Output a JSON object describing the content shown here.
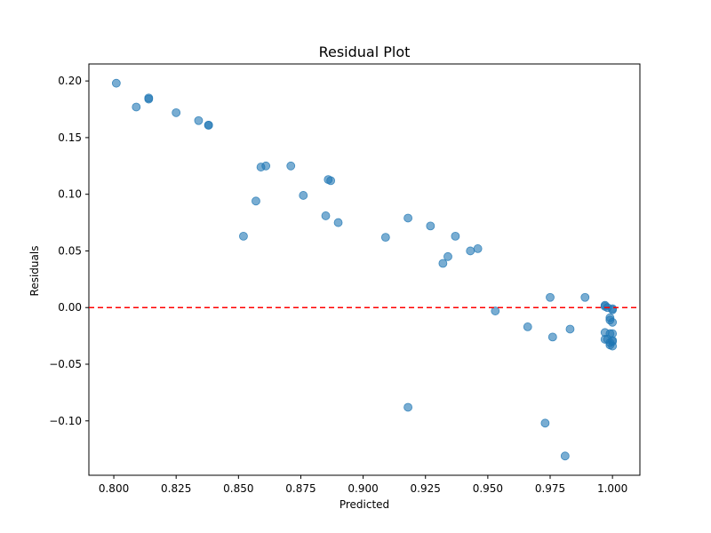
{
  "chart_data": {
    "type": "scatter",
    "title": "Residual Plot",
    "xlabel": "Predicted",
    "ylabel": "Residuals",
    "xlim": [
      0.79,
      1.011
    ],
    "ylim": [
      -0.148,
      0.215
    ],
    "xticks": [
      0.8,
      0.825,
      0.85,
      0.875,
      0.9,
      0.925,
      0.95,
      0.975,
      1.0
    ],
    "xtick_labels": [
      "0.800",
      "0.825",
      "0.850",
      "0.875",
      "0.900",
      "0.925",
      "0.950",
      "0.975",
      "1.000"
    ],
    "yticks": [
      0.2,
      0.15,
      0.1,
      0.05,
      0.0,
      -0.05,
      -0.1
    ],
    "ytick_labels": [
      "0.20",
      "0.15",
      "0.10",
      "0.05",
      "0.00",
      "−0.05",
      "−0.10"
    ],
    "grid": false,
    "reference_line": {
      "y": 0.0,
      "color": "#ff0000",
      "style": "dashed"
    },
    "point_color": "#1f77b4",
    "points": [
      [
        0.801,
        0.198
      ],
      [
        0.809,
        0.177
      ],
      [
        0.814,
        0.185
      ],
      [
        0.814,
        0.184
      ],
      [
        0.825,
        0.172
      ],
      [
        0.834,
        0.165
      ],
      [
        0.838,
        0.161
      ],
      [
        0.838,
        0.161
      ],
      [
        0.852,
        0.063
      ],
      [
        0.857,
        0.094
      ],
      [
        0.859,
        0.124
      ],
      [
        0.861,
        0.125
      ],
      [
        0.871,
        0.125
      ],
      [
        0.876,
        0.099
      ],
      [
        0.885,
        0.081
      ],
      [
        0.886,
        0.113
      ],
      [
        0.887,
        0.112
      ],
      [
        0.89,
        0.075
      ],
      [
        0.909,
        0.062
      ],
      [
        0.918,
        0.079
      ],
      [
        0.918,
        -0.088
      ],
      [
        0.927,
        0.072
      ],
      [
        0.932,
        0.039
      ],
      [
        0.934,
        0.045
      ],
      [
        0.937,
        0.063
      ],
      [
        0.943,
        0.05
      ],
      [
        0.946,
        0.052
      ],
      [
        0.953,
        -0.003
      ],
      [
        0.966,
        -0.017
      ],
      [
        0.973,
        -0.102
      ],
      [
        0.975,
        0.009
      ],
      [
        0.976,
        -0.026
      ],
      [
        0.981,
        -0.131
      ],
      [
        0.983,
        -0.019
      ],
      [
        0.989,
        0.009
      ],
      [
        0.997,
        0.002
      ],
      [
        0.997,
        0.001
      ],
      [
        0.997,
        -0.022
      ],
      [
        0.997,
        -0.028
      ],
      [
        0.998,
        -0.028
      ],
      [
        0.998,
        0.0
      ],
      [
        0.999,
        -0.009
      ],
      [
        0.999,
        -0.011
      ],
      [
        0.999,
        -0.031
      ],
      [
        0.999,
        -0.033
      ],
      [
        0.999,
        -0.023
      ],
      [
        1.0,
        -0.002
      ],
      [
        1.0,
        -0.001
      ],
      [
        1.0,
        -0.013
      ],
      [
        1.0,
        -0.023
      ],
      [
        1.0,
        -0.03
      ],
      [
        1.0,
        -0.034
      ],
      [
        1.0,
        -0.029
      ]
    ]
  }
}
